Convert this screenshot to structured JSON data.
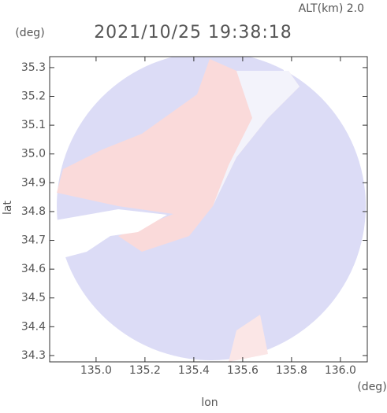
{
  "chart_data": {
    "type": "radar-image",
    "title": "2021/10/25 19:38:18",
    "annotation": "ALT(km) 2.0",
    "x_label": "lon",
    "y_label": "lat",
    "x_unit": "(deg)",
    "y_unit": "(deg)",
    "xlim": [
      134.81,
      136.11
    ],
    "ylim": [
      34.278,
      35.338
    ],
    "xticks": [
      {
        "value": 135,
        "label": "135.0"
      },
      135.2,
      135.4,
      135.6,
      135.8,
      {
        "value": 136,
        "label": "136.0"
      }
    ],
    "yticks": [
      34.3,
      34.4,
      34.5,
      34.6,
      34.7,
      34.8,
      34.9,
      {
        "value": 35,
        "label": "35.0"
      },
      35.1,
      35.2,
      35.3
    ]
  }
}
